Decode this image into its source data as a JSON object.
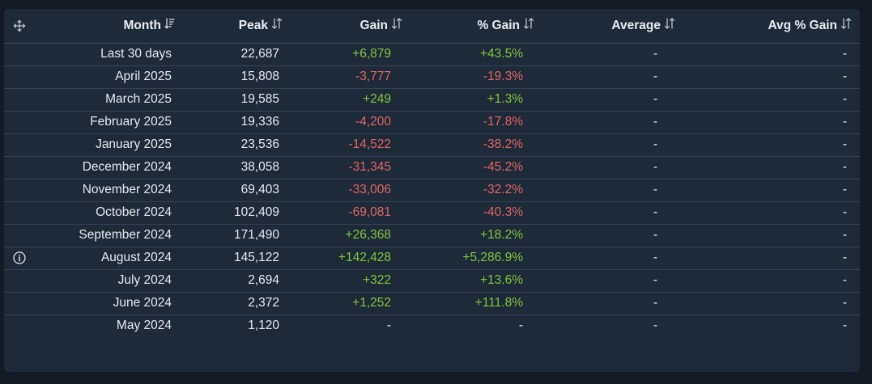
{
  "table": {
    "headers": {
      "month": "Month",
      "peak": "Peak",
      "gain": "Gain",
      "pgain": "% Gain",
      "average": "Average",
      "avg_pgain": "Avg % Gain"
    },
    "sort_icons": {
      "month": "sort-descending-icon",
      "other": "sort-updown-icon"
    },
    "rows": [
      {
        "month": "Last 30 days",
        "peak": "22,687",
        "gain": "+6,879",
        "pgain": "+43.5%",
        "average": "-",
        "avg_pgain": "-",
        "trend": "pos",
        "info": false
      },
      {
        "month": "April 2025",
        "peak": "15,808",
        "gain": "-3,777",
        "pgain": "-19.3%",
        "average": "-",
        "avg_pgain": "-",
        "trend": "neg",
        "info": false
      },
      {
        "month": "March 2025",
        "peak": "19,585",
        "gain": "+249",
        "pgain": "+1.3%",
        "average": "-",
        "avg_pgain": "-",
        "trend": "pos",
        "info": false
      },
      {
        "month": "February 2025",
        "peak": "19,336",
        "gain": "-4,200",
        "pgain": "-17.8%",
        "average": "-",
        "avg_pgain": "-",
        "trend": "neg",
        "info": false
      },
      {
        "month": "January 2025",
        "peak": "23,536",
        "gain": "-14,522",
        "pgain": "-38.2%",
        "average": "-",
        "avg_pgain": "-",
        "trend": "neg",
        "info": false
      },
      {
        "month": "December 2024",
        "peak": "38,058",
        "gain": "-31,345",
        "pgain": "-45.2%",
        "average": "-",
        "avg_pgain": "-",
        "trend": "neg",
        "info": false
      },
      {
        "month": "November 2024",
        "peak": "69,403",
        "gain": "-33,006",
        "pgain": "-32.2%",
        "average": "-",
        "avg_pgain": "-",
        "trend": "neg",
        "info": false
      },
      {
        "month": "October 2024",
        "peak": "102,409",
        "gain": "-69,081",
        "pgain": "-40.3%",
        "average": "-",
        "avg_pgain": "-",
        "trend": "neg",
        "info": false
      },
      {
        "month": "September 2024",
        "peak": "171,490",
        "gain": "+26,368",
        "pgain": "+18.2%",
        "average": "-",
        "avg_pgain": "-",
        "trend": "pos",
        "info": false
      },
      {
        "month": "August 2024",
        "peak": "145,122",
        "gain": "+142,428",
        "pgain": "+5,286.9%",
        "average": "-",
        "avg_pgain": "-",
        "trend": "pos",
        "info": true
      },
      {
        "month": "July 2024",
        "peak": "2,694",
        "gain": "+322",
        "pgain": "+13.6%",
        "average": "-",
        "avg_pgain": "-",
        "trend": "pos",
        "info": false
      },
      {
        "month": "June 2024",
        "peak": "2,372",
        "gain": "+1,252",
        "pgain": "+111.8%",
        "average": "-",
        "avg_pgain": "-",
        "trend": "pos",
        "info": false
      },
      {
        "month": "May 2024",
        "peak": "1,120",
        "gain": "-",
        "pgain": "-",
        "average": "-",
        "avg_pgain": "-",
        "trend": "neutral",
        "info": false
      }
    ]
  },
  "colors": {
    "background": "#141b24",
    "panel": "#1e2a38",
    "positive": "#82c341",
    "negative": "#e06565",
    "text": "#e6e9ee"
  }
}
